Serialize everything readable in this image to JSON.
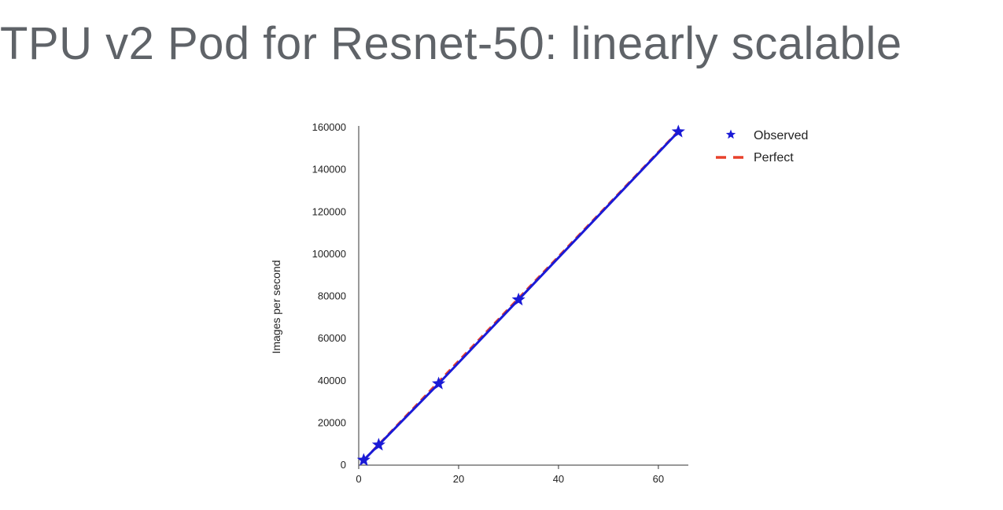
{
  "slide": {
    "title": "TPU v2 Pod for Resnet-50: linearly scalable"
  },
  "chart_data": {
    "type": "line",
    "title": "",
    "xlabel": "",
    "ylabel": "Images per second",
    "xlim": [
      0,
      66
    ],
    "ylim": [
      0,
      160000
    ],
    "xticks": [
      0,
      20,
      40,
      60
    ],
    "yticks": [
      0,
      20000,
      40000,
      60000,
      80000,
      100000,
      120000,
      140000,
      160000
    ],
    "grid": false,
    "legend_position": "top-right",
    "series": [
      {
        "name": "Observed",
        "kind": "line-with-star-markers",
        "color": "#1a1ad6",
        "x": [
          1,
          4,
          16,
          32,
          64
        ],
        "y": [
          2400,
          9600,
          38600,
          78400,
          158000
        ]
      },
      {
        "name": "Perfect",
        "kind": "dashed-line",
        "color": "#e8412c",
        "x": [
          1,
          4,
          16,
          32,
          64
        ],
        "y": [
          2475,
          9900,
          39600,
          79200,
          158400
        ]
      }
    ]
  }
}
